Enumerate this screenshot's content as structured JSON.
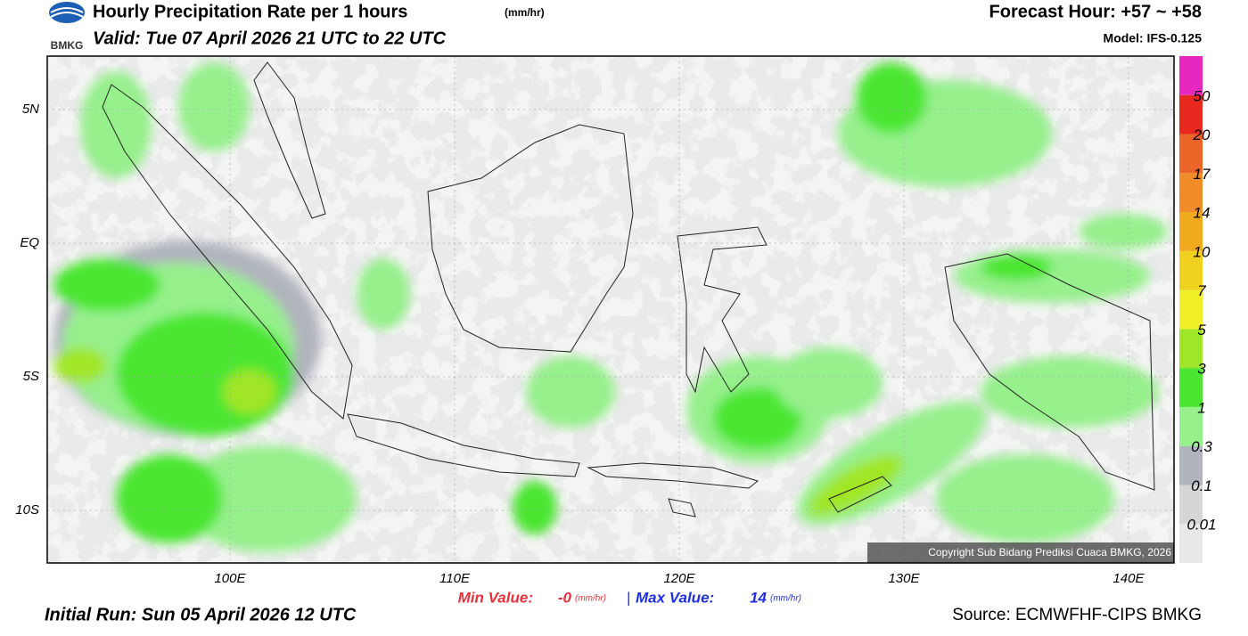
{
  "header": {
    "title": "Hourly Precipitation Rate per 1 hours",
    "title_unit": "(mm/hr)",
    "valid": "Valid: Tue 07 April 2026 21 UTC to 22 UTC",
    "forecast_hour": "Forecast Hour: +57 ~ +58",
    "model": "Model: IFS-0.125",
    "logo_text": "BMKG"
  },
  "map": {
    "lat_labels": [
      "5N",
      "EQ",
      "5S",
      "10S"
    ],
    "lon_labels": [
      "100E",
      "110E",
      "120E",
      "130E",
      "140E"
    ],
    "copyright": "Copyright Sub Bidang Prediksi Cuaca BMKG, 2026"
  },
  "colorbar": {
    "labels": [
      "0.01",
      "0.1",
      "0.3",
      "1",
      "3",
      "5",
      "7",
      "10",
      "14",
      "17",
      "20",
      "50"
    ],
    "colors": [
      "#e8e8e8",
      "#d6d6d6",
      "#b0b4bc",
      "#96f08c",
      "#4be632",
      "#a0e628",
      "#f0f028",
      "#f0d21e",
      "#f0aa1e",
      "#f08c28",
      "#eb6428",
      "#e6281e",
      "#e628be"
    ]
  },
  "footer": {
    "min_label": "Min Value:",
    "min_value": "-0",
    "unit": "(mm/hr)",
    "separator": "|",
    "max_label": "Max Value:",
    "max_value": "14",
    "initial_run": "Initial Run: Sun 05 April 2026 12 UTC",
    "source": "Source: ECMWFHF-CIPS BMKG"
  }
}
